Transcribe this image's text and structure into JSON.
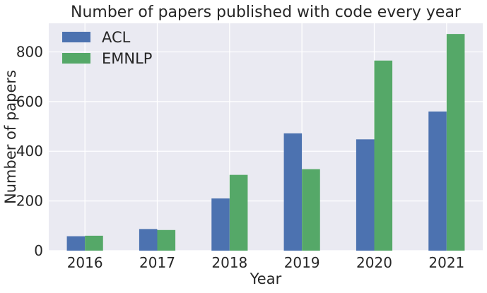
{
  "chart_data": {
    "type": "bar",
    "title": "Number of papers published with code every year",
    "xlabel": "Year",
    "ylabel": "Number of papers",
    "categories": [
      "2016",
      "2017",
      "2018",
      "2019",
      "2020",
      "2021"
    ],
    "series": [
      {
        "name": "ACL",
        "values": [
          58,
          87,
          210,
          472,
          448,
          560
        ],
        "color": "#4c72b0"
      },
      {
        "name": "EMNLP",
        "values": [
          60,
          83,
          305,
          328,
          765,
          872
        ],
        "color": "#55a868"
      }
    ],
    "ylim": [
      0,
      915
    ],
    "yticks": [
      0,
      200,
      400,
      600,
      800
    ],
    "grid": true,
    "legend_position": "top-left",
    "style": {
      "axes_background": "#eaeaf2",
      "grid_color": "#ffffff"
    }
  }
}
